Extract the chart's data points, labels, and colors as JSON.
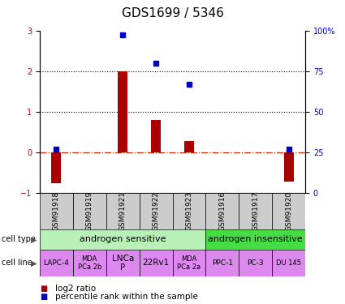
{
  "title": "GDS1699 / 5346",
  "samples": [
    "GSM91918",
    "GSM91919",
    "GSM91921",
    "GSM91922",
    "GSM91923",
    "GSM91916",
    "GSM91917",
    "GSM91920"
  ],
  "log2_ratio": [
    -0.75,
    0.0,
    2.0,
    0.8,
    0.28,
    0.0,
    0.0,
    -0.72
  ],
  "percentile_pct": [
    27.0,
    0.0,
    97.5,
    80.0,
    67.0,
    0.0,
    0.0,
    27.0
  ],
  "show_dot": [
    true,
    false,
    true,
    true,
    true,
    false,
    false,
    true
  ],
  "cell_type_groups": [
    {
      "label": "androgen sensitive",
      "start": 0,
      "end": 5,
      "color": "#b8f0b8"
    },
    {
      "label": "androgen insensitive",
      "start": 5,
      "end": 8,
      "color": "#44dd44"
    }
  ],
  "cell_lines": [
    {
      "label": "LAPC-4",
      "col": 0,
      "color": "#dd88ee",
      "fontsize": 6.5
    },
    {
      "label": "MDA\nPCa 2b",
      "col": 1,
      "color": "#dd88ee",
      "fontsize": 6.0
    },
    {
      "label": "LNCa\nP",
      "col": 2,
      "color": "#dd88ee",
      "fontsize": 7.5
    },
    {
      "label": "22Rv1",
      "col": 3,
      "color": "#dd88ee",
      "fontsize": 7.5
    },
    {
      "label": "MDA\nPCa 2a",
      "col": 4,
      "color": "#dd88ee",
      "fontsize": 6.0
    },
    {
      "label": "PPC-1",
      "col": 5,
      "color": "#dd88ee",
      "fontsize": 6.5
    },
    {
      "label": "PC-3",
      "col": 6,
      "color": "#dd88ee",
      "fontsize": 6.5
    },
    {
      "label": "DU 145",
      "col": 7,
      "color": "#dd88ee",
      "fontsize": 6.0
    }
  ],
  "ylim_left": [
    -1.0,
    3.0
  ],
  "yticks_left": [
    -1,
    0,
    1,
    2,
    3
  ],
  "yticks_right": [
    0,
    25,
    50,
    75,
    100
  ],
  "yticklabels_right": [
    "0",
    "25",
    "50",
    "75",
    "100%"
  ],
  "hlines": [
    1,
    2
  ],
  "bar_color": "#aa0000",
  "dot_color": "#0000cc",
  "zero_line_color": "#cc2200",
  "sample_box_color": "#cccccc",
  "left_label_color": "#cc0000",
  "right_label_color": "#0000cc",
  "title_fontsize": 11,
  "tick_fontsize": 7,
  "sample_fontsize": 6.5,
  "legend_fontsize": 7.5,
  "cell_type_fontsize": 8,
  "cell_line_fontsize": 6.5,
  "bar_width": 0.3,
  "dot_size": 4
}
